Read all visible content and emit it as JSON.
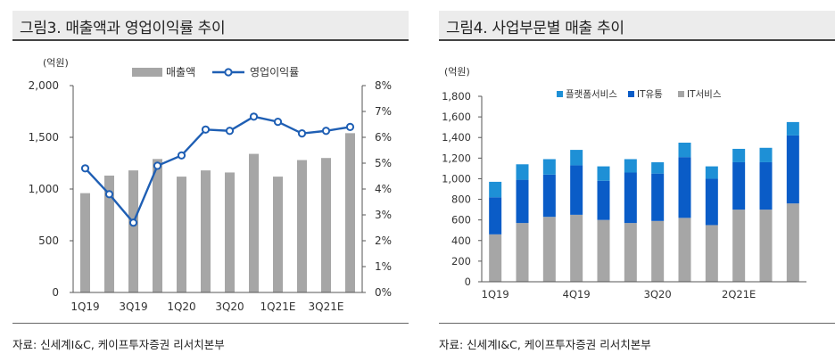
{
  "left_panel": {
    "title": "그림3. 매출액과 영업이익률 추이",
    "source": "자료: 신세계I&C, 케이프투자증권 리서치본부"
  },
  "right_panel": {
    "title": "그림4. 사업부문별 매출 추이",
    "source": "자료: 신세계I&C, 케이프투자증권 리서치본부"
  },
  "chart_data": [
    {
      "type": "bar+line",
      "title": "그림3. 매출액과 영업이익률 추이",
      "y_unit": "(억원)",
      "categories": [
        "1Q19",
        "2Q19",
        "3Q19",
        "4Q19",
        "1Q20",
        "2Q20",
        "3Q20",
        "4Q20",
        "1Q21E",
        "2Q21E",
        "3Q21E",
        "4Q21E"
      ],
      "x_tick_labels": [
        "1Q19",
        "",
        "3Q19",
        "",
        "1Q20",
        "",
        "3Q20",
        "",
        "1Q21E",
        "",
        "3Q21E",
        ""
      ],
      "series": [
        {
          "name": "매출액",
          "kind": "bar",
          "axis": "left",
          "color": "#a6a6a6",
          "values": [
            960,
            1130,
            1180,
            1290,
            1120,
            1180,
            1160,
            1340,
            1120,
            1280,
            1300,
            1540
          ]
        },
        {
          "name": "영업이익률",
          "kind": "line",
          "axis": "right",
          "color": "#1f5fb4",
          "values": [
            4.8,
            3.8,
            2.7,
            4.9,
            5.3,
            6.3,
            6.25,
            6.8,
            6.6,
            6.15,
            6.25,
            6.4
          ]
        }
      ],
      "y_left": {
        "min": 0,
        "max": 2000,
        "ticks": [
          "0",
          "500",
          "1,000",
          "1,500",
          "2,000"
        ]
      },
      "y_right": {
        "min": 0,
        "max": 8,
        "ticks": [
          "0%",
          "1%",
          "2%",
          "3%",
          "4%",
          "5%",
          "6%",
          "7%",
          "8%"
        ]
      },
      "legend": "top"
    },
    {
      "type": "stacked-bar",
      "title": "그림4. 사업부문별 매출 추이",
      "y_unit": "(억원)",
      "categories": [
        "1Q19",
        "2Q19",
        "3Q19",
        "4Q19",
        "1Q20",
        "2Q20",
        "3Q20",
        "4Q20",
        "1Q21E",
        "2Q21E",
        "3Q21E",
        "4Q21E"
      ],
      "x_tick_labels": [
        "1Q19",
        "",
        "",
        "4Q19",
        "",
        "",
        "3Q20",
        "",
        "",
        "2Q21E",
        "",
        ""
      ],
      "series": [
        {
          "name": "IT서비스",
          "color": "#a6a6a6",
          "values": [
            460,
            570,
            630,
            650,
            600,
            570,
            590,
            620,
            550,
            700,
            700,
            760
          ]
        },
        {
          "name": "IT유통",
          "color": "#0a5cc7",
          "values": [
            360,
            420,
            410,
            480,
            380,
            490,
            460,
            590,
            450,
            460,
            460,
            660
          ]
        },
        {
          "name": "플랫폼서비스",
          "color": "#1e90d6",
          "values": [
            150,
            150,
            150,
            150,
            140,
            130,
            110,
            140,
            120,
            130,
            140,
            130
          ]
        }
      ],
      "legend_order": [
        "플랫폼서비스",
        "IT유통",
        "IT서비스"
      ],
      "y_axis": {
        "min": 0,
        "max": 1800,
        "ticks": [
          "0",
          "200",
          "400",
          "600",
          "800",
          "1,000",
          "1,200",
          "1,400",
          "1,600",
          "1,800"
        ]
      },
      "legend": "top"
    }
  ]
}
